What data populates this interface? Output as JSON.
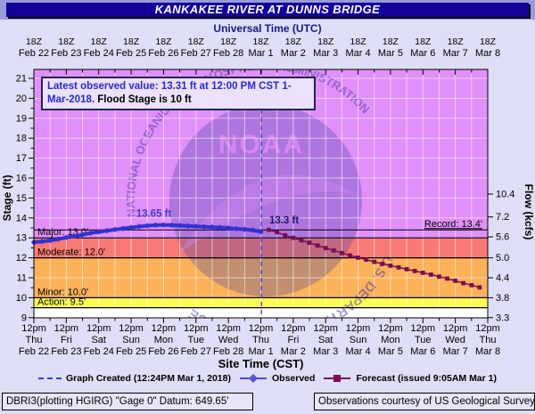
{
  "title": "KANKAKEE RIVER AT DUNNS BRIDGE",
  "annotation": {
    "blue_text": "Latest observed value: 13.31 ft at 12:00 PM CST 1-Mar-2018.",
    "black_text": "Flood Stage is 10 ft"
  },
  "legend": {
    "created_label": "Graph Created (12:24PM Mar 1, 2018)",
    "observed_label": "Observed",
    "forecast_label": "Forecast (issued 9:05AM Mar 1)"
  },
  "footer": {
    "left": "DBRI3(plotting HGIRG) \"Gage 0\" Datum: 649.65'",
    "right": "Observations courtesy of US Geological Survey"
  },
  "watermark": {
    "top_text": "NATIONAL OCEANIC AND ATMOSPHERIC ADMINISTRATION",
    "bottom_text": "U.S. DEPARTMENT OF COMMERCE",
    "center_text": "NOAA"
  },
  "colors": {
    "titlebar_navy": "#13009b",
    "page_lavender": "#dedef6",
    "observed_blue": "#3232d2",
    "forecast_maroon": "#7a0e56",
    "now_line_blue": "#3a3ae0",
    "zone_major": "#e18ffa",
    "zone_moderate": "#f97a74",
    "zone_minor": "#fbb259",
    "zone_action": "#fcfc55",
    "zone_none": "#ffffff",
    "watermark_blue": "#3b3b9e"
  },
  "chart_data": {
    "type": "line",
    "title": "KANKAKEE RIVER AT DUNNS BRIDGE",
    "x_top": {
      "label": "Universal Time (UTC)",
      "tick_labels": [
        "18Z",
        "18Z",
        "18Z",
        "18Z",
        "18Z",
        "18Z",
        "18Z",
        "18Z",
        "18Z",
        "18Z",
        "18Z",
        "18Z",
        "18Z",
        "18Z",
        "18Z"
      ],
      "date_labels": [
        "Feb 22",
        "Feb 23",
        "Feb 24",
        "Feb 25",
        "Feb 26",
        "Feb 27",
        "Feb 28",
        "Mar 1",
        "Mar 2",
        "Mar 3",
        "Mar 4",
        "Mar 5",
        "Mar 6",
        "Mar 7",
        "Mar 8"
      ]
    },
    "x_bottom": {
      "label": "Site Time (CST)",
      "time_labels": [
        "12pm",
        "12pm",
        "12pm",
        "12pm",
        "12pm",
        "12pm",
        "12pm",
        "12pm",
        "12pm",
        "12pm",
        "12pm",
        "12pm",
        "12pm",
        "12pm",
        "12pm"
      ],
      "day_labels": [
        "Thu",
        "Fri",
        "Sat",
        "Sun",
        "Mon",
        "Tue",
        "Wed",
        "Thu",
        "Fri",
        "Sat",
        "Sun",
        "Mon",
        "Tue",
        "Wed",
        "Thu"
      ],
      "date_labels": [
        "Feb 22",
        "Feb 23",
        "Feb 24",
        "Feb 25",
        "Feb 26",
        "Feb 27",
        "Feb 28",
        "Mar 1",
        "Mar 2",
        "Mar 3",
        "Mar 4",
        "Mar 5",
        "Mar 6",
        "Mar 7",
        "Mar 8"
      ]
    },
    "axis_range_days": 14,
    "y_left": {
      "label": "Stage (ft)",
      "min": 9,
      "max": 21,
      "tick_labels": [
        "21",
        "20",
        "19",
        "18",
        "17",
        "16",
        "15",
        "14",
        "13",
        "12",
        "11",
        "10",
        "9"
      ]
    },
    "y_right": {
      "label": "Flow (kcfs)",
      "ticks": [
        {
          "flow": "10.4",
          "stage": 15.2
        },
        {
          "flow": "7.2",
          "stage": 14.05
        },
        {
          "flow": "5.6",
          "stage": 13.05
        },
        {
          "flow": "5.0",
          "stage": 12.0
        },
        {
          "flow": "4.4",
          "stage": 11.0
        },
        {
          "flow": "3.8",
          "stage": 10.0
        },
        {
          "flow": "3.3",
          "stage": 9.0
        }
      ]
    },
    "flood_zones": [
      {
        "name": "major",
        "label": "Major: 13.0'",
        "from": 13,
        "to": 21.45,
        "color": "#e18ffa"
      },
      {
        "name": "moderate",
        "label": "Moderate: 12.0'",
        "from": 12,
        "to": 13,
        "color": "#f97a74"
      },
      {
        "name": "minor",
        "label": "Minor: 10.0'",
        "from": 10,
        "to": 12,
        "color": "#fbb259"
      },
      {
        "name": "action",
        "label": "Action: 9.5'",
        "from": 9.5,
        "to": 10,
        "color": "#fcfc55"
      },
      {
        "name": "normal",
        "label": "",
        "from": 9,
        "to": 9.5,
        "color": "#ffffff"
      }
    ],
    "record_line": {
      "label": "Record: 13.4'",
      "stage": 13.4
    },
    "now_line": {
      "time_days": 7.02
    },
    "grid": true,
    "series": [
      {
        "name": "Observed",
        "color": "#3232d2",
        "marker": "diamond",
        "width": 4,
        "points": [
          [
            0,
            12.78
          ],
          [
            0.25,
            12.82
          ],
          [
            0.5,
            12.87
          ],
          [
            0.75,
            12.94
          ],
          [
            1,
            13.02
          ],
          [
            1.25,
            13.09
          ],
          [
            1.5,
            13.16
          ],
          [
            1.75,
            13.24
          ],
          [
            2,
            13.3
          ],
          [
            2.25,
            13.36
          ],
          [
            2.5,
            13.42
          ],
          [
            2.75,
            13.47
          ],
          [
            3,
            13.52
          ],
          [
            3.25,
            13.57
          ],
          [
            3.5,
            13.61
          ],
          [
            3.75,
            13.64
          ],
          [
            4,
            13.65
          ],
          [
            4.25,
            13.64
          ],
          [
            4.5,
            13.62
          ],
          [
            4.75,
            13.6
          ],
          [
            5,
            13.58
          ],
          [
            5.25,
            13.56
          ],
          [
            5.5,
            13.54
          ],
          [
            5.75,
            13.52
          ],
          [
            6,
            13.49
          ],
          [
            6.25,
            13.46
          ],
          [
            6.5,
            13.43
          ],
          [
            6.75,
            13.39
          ],
          [
            7,
            13.31
          ]
        ]
      },
      {
        "name": "Forecast",
        "color": "#7a0e56",
        "marker": "square",
        "width": 1.5,
        "points": [
          [
            7.25,
            13.4
          ],
          [
            7.5,
            13.28
          ],
          [
            7.75,
            13.13
          ],
          [
            8,
            13
          ],
          [
            8.25,
            12.88
          ],
          [
            8.5,
            12.76
          ],
          [
            8.75,
            12.62
          ],
          [
            9,
            12.49
          ],
          [
            9.25,
            12.37
          ],
          [
            9.5,
            12.24
          ],
          [
            9.75,
            12.12
          ],
          [
            10,
            12.01
          ],
          [
            10.25,
            11.91
          ],
          [
            10.5,
            11.8
          ],
          [
            10.75,
            11.7
          ],
          [
            11,
            11.61
          ],
          [
            11.25,
            11.52
          ],
          [
            11.5,
            11.43
          ],
          [
            11.75,
            11.34
          ],
          [
            12,
            11.25
          ],
          [
            12.25,
            11.16
          ],
          [
            12.5,
            11.06
          ],
          [
            12.75,
            10.96
          ],
          [
            13,
            10.85
          ],
          [
            13.25,
            10.73
          ],
          [
            13.5,
            10.63
          ],
          [
            13.75,
            10.52
          ]
        ]
      }
    ],
    "point_labels": [
      {
        "text": "13.65 ft",
        "x_days": 3.7,
        "stage": 14.05,
        "color": "#3b3bd8",
        "anchor": "middle"
      },
      {
        "text": "13.3 ft",
        "x_days": 7.26,
        "stage": 13.72,
        "color": "#1c1c6e",
        "anchor": "start"
      }
    ]
  }
}
